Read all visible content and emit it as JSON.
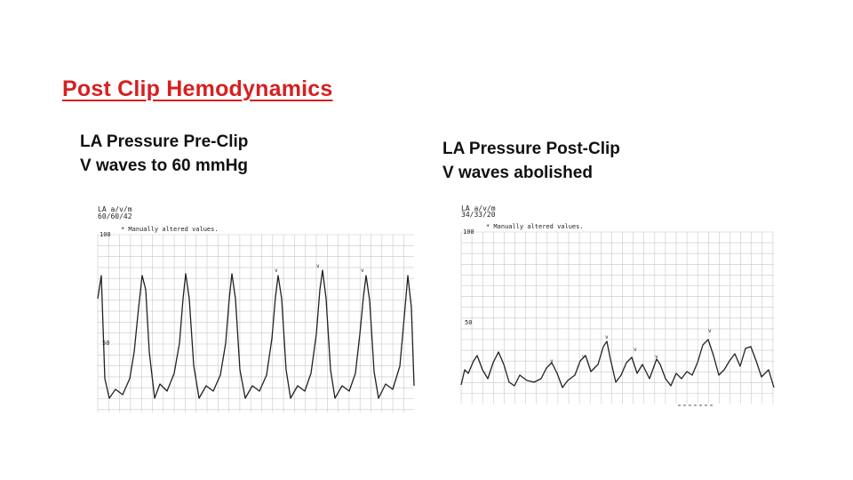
{
  "slide": {
    "title": "Post Clip Hemodynamics"
  },
  "panels": [
    {
      "heading_line1": "LA Pressure Pre-Clip",
      "heading_line2": "V waves to 60 mmHg",
      "readout_label": "LA  a/v/m",
      "readout_value": "60/60/42",
      "note": "* Manually altered values.",
      "axis_ticks": [
        "100",
        "50"
      ]
    },
    {
      "heading_line1": "LA Pressure Post-Clip",
      "heading_line2": "V waves abolished",
      "readout_label": "LA  a/v/m",
      "readout_value": "34/33/20",
      "note": "* Manually altered values.",
      "axis_ticks": [
        "100",
        "50"
      ]
    }
  ],
  "colors": {
    "title": "#d62020",
    "text": "#111111",
    "grid": "#c8c8c8",
    "trace": "#222222"
  }
}
